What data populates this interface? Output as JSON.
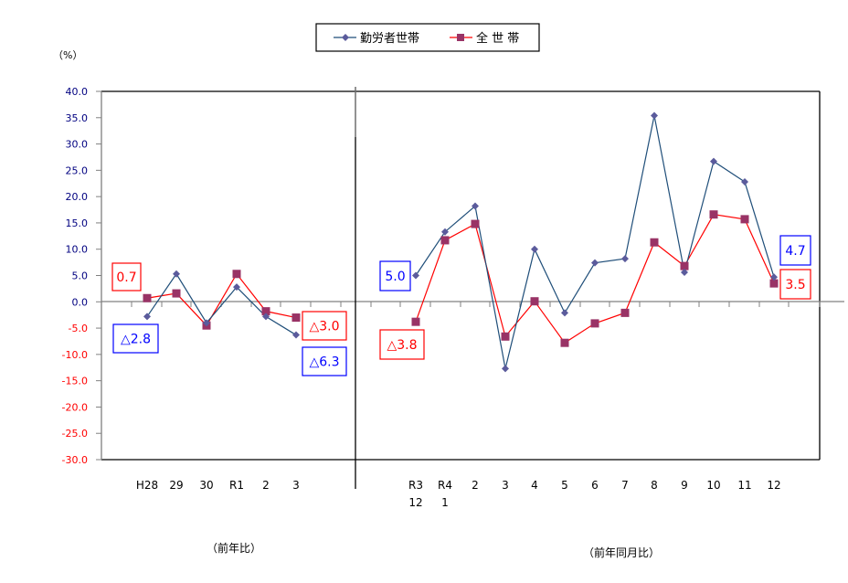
{
  "chart_data": {
    "type": "line",
    "title": "",
    "ylabel": "（%）",
    "ylim": [
      -30,
      40
    ],
    "ytick_step": 5,
    "yticks": [
      "40.0",
      "35.0",
      "30.0",
      "25.0",
      "20.0",
      "15.0",
      "10.0",
      "5.0",
      "0.0",
      "-5.0",
      "-10.0",
      "-15.0",
      "-20.0",
      "-25.0",
      "-30.0"
    ],
    "negative_tick_color": "#ff0000",
    "positive_tick_color": "#000080",
    "grid": false,
    "legend": {
      "position": "top-center",
      "entries": [
        {
          "name": "勤労者世帯",
          "color": "#1f4e79",
          "marker": "diamond",
          "marker_color": "#5b5b9c"
        },
        {
          "name": "全 世 帯",
          "color": "#ff0000",
          "marker": "square",
          "marker_color": "#993366"
        }
      ]
    },
    "panels": [
      {
        "id": "annual",
        "xlabel": "（前年比）",
        "categories": [
          [
            "H28"
          ],
          [
            "29"
          ],
          [
            "30"
          ],
          [
            "R1"
          ],
          [
            "2"
          ],
          [
            "3"
          ]
        ],
        "series": [
          {
            "name": "勤労者世帯",
            "values": [
              -2.8,
              5.3,
              -4.0,
              2.8,
              -2.8,
              -6.3
            ]
          },
          {
            "name": "全 世 帯",
            "values": [
              0.7,
              1.6,
              -4.5,
              5.3,
              -1.8,
              -3.0
            ]
          }
        ],
        "annotations": [
          {
            "text": "0.7",
            "series": "全 世 帯",
            "point": 0,
            "color": "#ff0000"
          },
          {
            "text": "△2.8",
            "series": "勤労者世帯",
            "point": 0,
            "color": "#0000ff"
          },
          {
            "text": "△3.0",
            "series": "全 世 帯",
            "point": 5,
            "color": "#ff0000"
          },
          {
            "text": "△6.3",
            "series": "勤労者世帯",
            "point": 5,
            "color": "#0000ff"
          }
        ]
      },
      {
        "id": "monthly",
        "xlabel": "（前年同月比）",
        "categories": [
          [
            "R3",
            "12"
          ],
          [
            "R4",
            "1"
          ],
          [
            "2"
          ],
          [
            "3"
          ],
          [
            "4"
          ],
          [
            "5"
          ],
          [
            "6"
          ],
          [
            "7"
          ],
          [
            "8"
          ],
          [
            "9"
          ],
          [
            "10"
          ],
          [
            "11"
          ],
          [
            "12"
          ]
        ],
        "series": [
          {
            "name": "勤労者世帯",
            "values": [
              5.0,
              13.3,
              18.2,
              -12.7,
              10.0,
              -2.1,
              7.4,
              8.2,
              35.4,
              5.6,
              26.7,
              22.8,
              4.7
            ]
          },
          {
            "name": "全 世 帯",
            "values": [
              -3.8,
              11.7,
              14.8,
              -6.6,
              0.1,
              -7.8,
              -4.1,
              -2.1,
              11.3,
              6.8,
              16.6,
              15.7,
              3.5
            ]
          }
        ],
        "annotations": [
          {
            "text": "5.0",
            "series": "勤労者世帯",
            "point": 0,
            "color": "#0000ff"
          },
          {
            "text": "△3.8",
            "series": "全 世 帯",
            "point": 0,
            "color": "#ff0000"
          },
          {
            "text": "4.7",
            "series": "勤労者世帯",
            "point": 12,
            "color": "#0000ff"
          },
          {
            "text": "3.5",
            "series": "全 世 帯",
            "point": 12,
            "color": "#ff0000"
          }
        ]
      }
    ]
  },
  "legend": {
    "workers_label": "勤労者世帯",
    "all_label": "全 世 帯"
  },
  "axis": {
    "unit_label": "（%）"
  },
  "panels": {
    "annual_caption": "（前年比）",
    "monthly_caption": "（前年同月比）"
  }
}
